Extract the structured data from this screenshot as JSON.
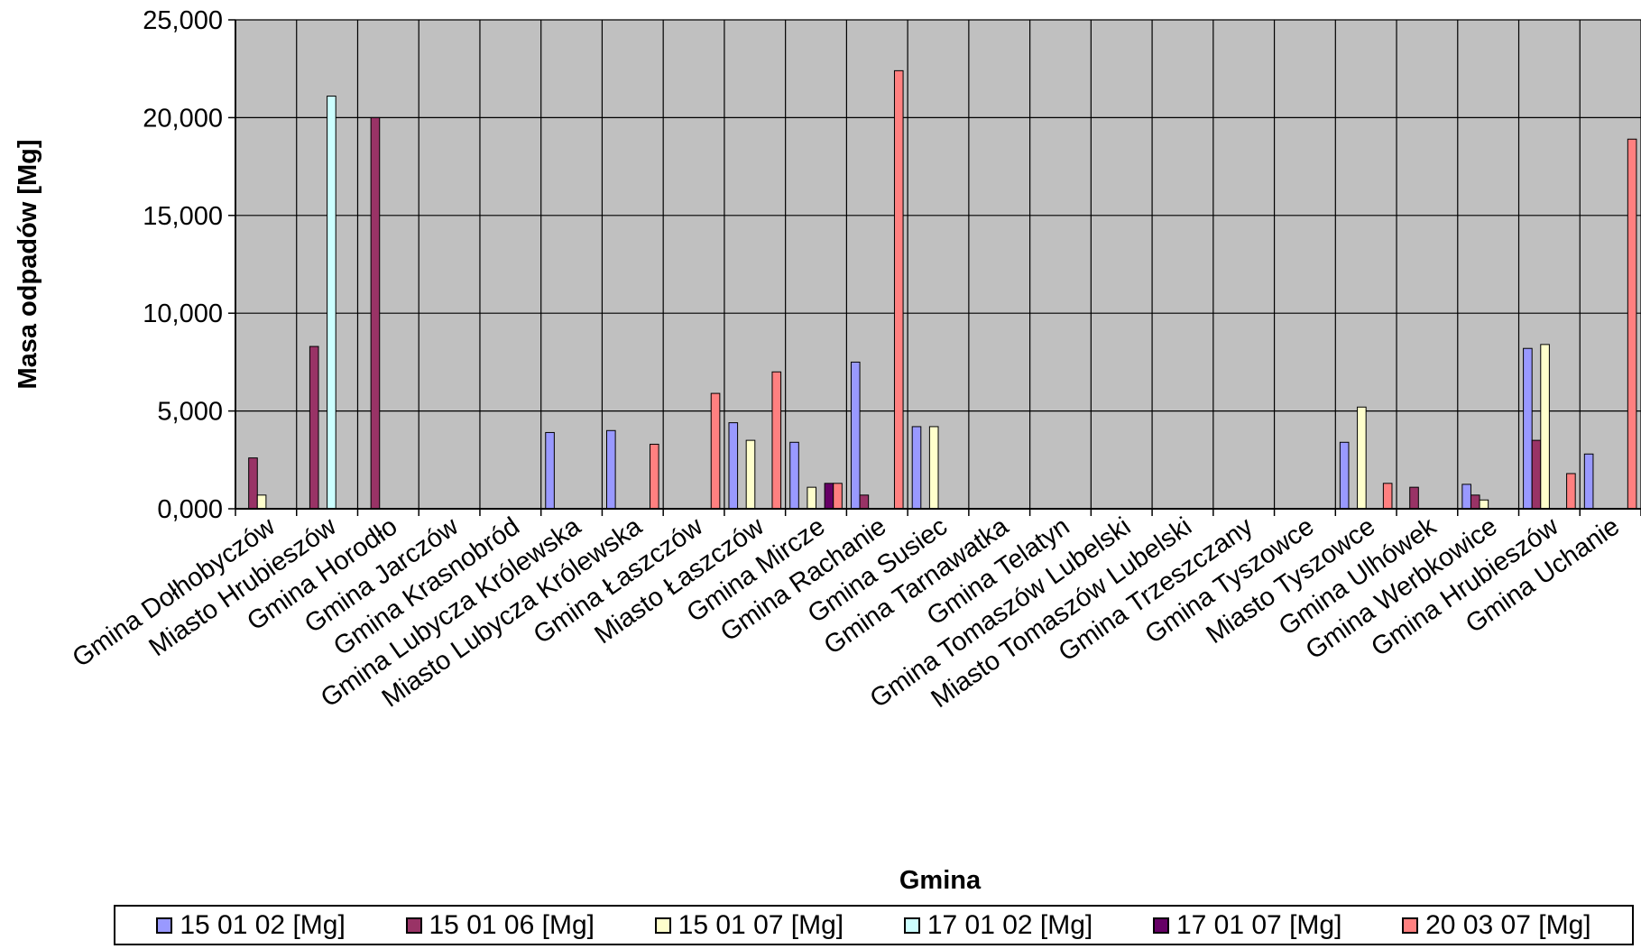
{
  "chart_data": {
    "type": "bar",
    "title": "",
    "xlabel": "Gmina",
    "ylabel": "Masa odpadów [Mg]",
    "ylim": [
      0,
      25
    ],
    "yticks": [
      "0,000",
      "5,000",
      "10,000",
      "15,000",
      "20,000",
      "25,000"
    ],
    "grid": true,
    "legend_position": "bottom",
    "categories": [
      "Gmina Dołhobyczów",
      "Miasto Hrubieszów",
      "Gmina Horodło",
      "Gmina Jarczów",
      "Gmina Krasnobród",
      "Gmina Lubycza Królewska",
      "Miasto Lubycza Królewska",
      "Gmina Łaszczów",
      "Miasto Łaszczów",
      "Gmina Mircze",
      "Gmina Rachanie",
      "Gmina Susiec",
      "Gmina Tarnawatka",
      "Gmina Telatyn",
      "Gmina Tomaszów Lubelski",
      "Miasto Tomaszów Lubelski",
      "Gmina Trzeszczany",
      "Gmina Tyszowce",
      "Miasto Tyszowce",
      "Gmina Ulhówek",
      "Gmina Werbkowice",
      "Gmina Hrubieszów",
      "Gmina Uchanie"
    ],
    "series": [
      {
        "name": "15 01 02 [Mg]",
        "color": "#9999ff",
        "values": [
          0,
          0,
          0,
          0,
          0,
          3.9,
          4.0,
          0,
          4.4,
          3.4,
          7.5,
          4.2,
          0,
          0,
          0,
          0,
          0,
          0,
          3.4,
          0,
          1.25,
          8.2,
          2.8
        ]
      },
      {
        "name": "15 01 06 [Mg]",
        "color": "#993366",
        "values": [
          2.6,
          8.3,
          20.0,
          0,
          0,
          0,
          0,
          0,
          0,
          0,
          0.7,
          0,
          0,
          0,
          0,
          0,
          0,
          0,
          0,
          1.1,
          0.7,
          3.5,
          0
        ]
      },
      {
        "name": "15 01 07 [Mg]",
        "color": "#ffffcc",
        "values": [
          0.7,
          0,
          0,
          0,
          0,
          0,
          0,
          0,
          3.5,
          1.1,
          0,
          4.2,
          0,
          0,
          0,
          0,
          0,
          0,
          5.2,
          0,
          0.45,
          8.4,
          0
        ]
      },
      {
        "name": "17 01 02 [Mg]",
        "color": "#ccffff",
        "values": [
          0,
          21.1,
          0,
          0,
          0,
          0,
          0,
          0,
          0,
          0,
          0,
          0,
          0,
          0,
          0,
          0,
          0,
          0,
          0,
          0,
          0,
          0,
          0
        ]
      },
      {
        "name": "17 01 07 [Mg]",
        "color": "#660066",
        "values": [
          0,
          0,
          0,
          0,
          0,
          0,
          0,
          0,
          0,
          1.3,
          0,
          0,
          0,
          0,
          0,
          0,
          0,
          0,
          0,
          0,
          0,
          0,
          0
        ]
      },
      {
        "name": "20 03 07 [Mg]",
        "color": "#ff8080",
        "values": [
          0,
          0,
          0,
          0,
          0,
          0,
          3.3,
          5.9,
          7.0,
          1.3,
          22.4,
          0,
          0,
          0,
          0,
          0,
          0,
          0,
          1.3,
          0,
          0,
          1.8,
          18.9
        ]
      }
    ]
  }
}
